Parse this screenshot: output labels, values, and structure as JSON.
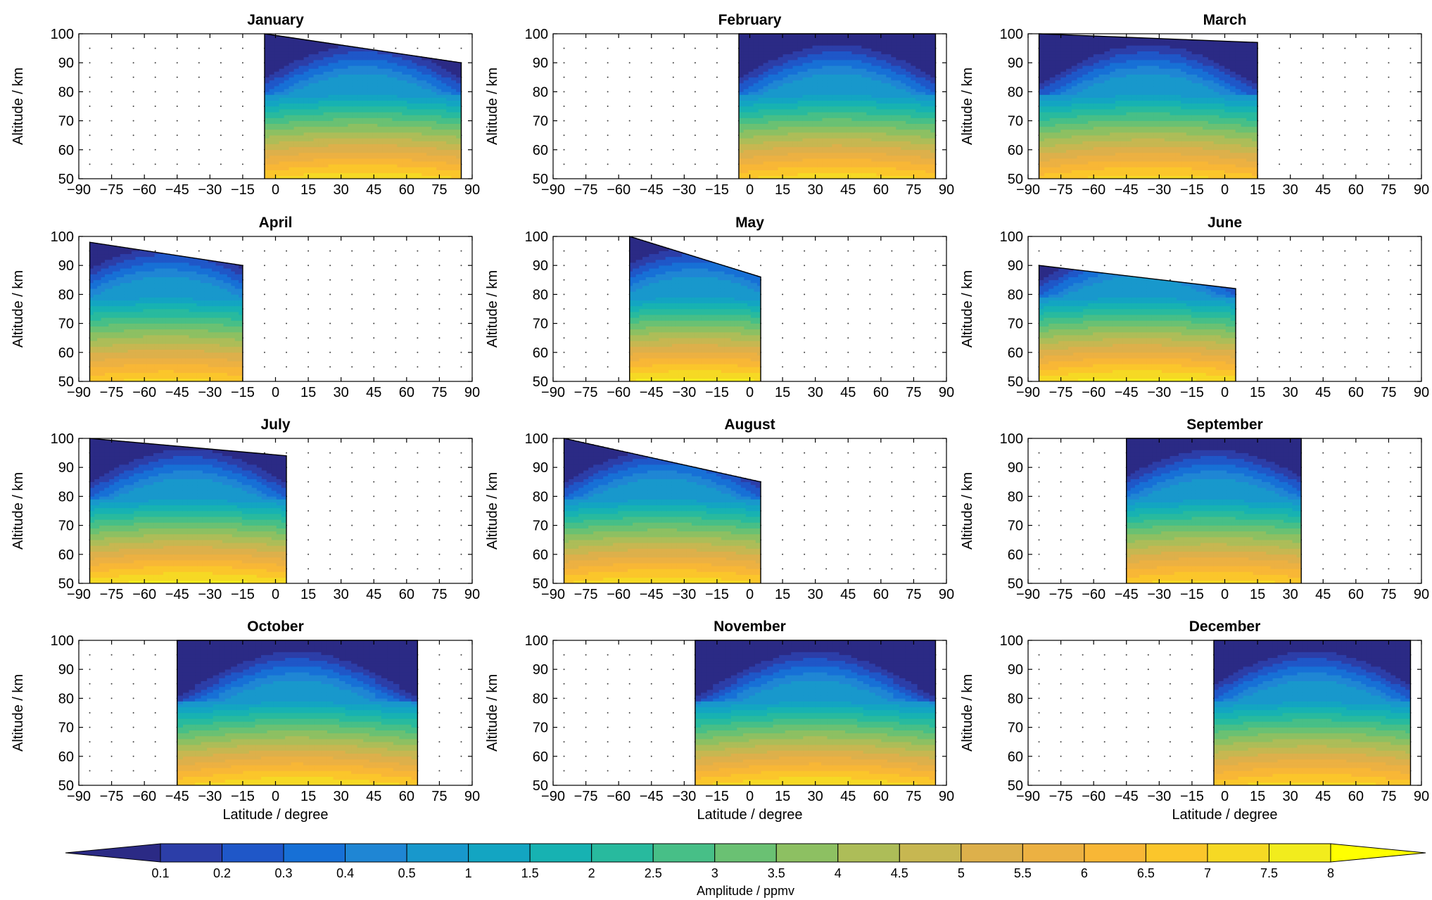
{
  "chart_data": {
    "type": "heatmap",
    "panels": [
      {
        "title": "January",
        "lat_range": [
          -5,
          85
        ],
        "low_peak": 7.3,
        "top_alt": [
          100,
          90
        ],
        "show_xlabel": false
      },
      {
        "title": "February",
        "lat_range": [
          -5,
          85
        ],
        "low_peak": 7.2,
        "top_alt": [
          100,
          100
        ],
        "show_xlabel": false
      },
      {
        "title": "March",
        "lat_range": [
          -85,
          15
        ],
        "low_peak": 7.1,
        "top_alt": [
          100,
          97
        ],
        "show_xlabel": false
      },
      {
        "title": "April",
        "lat_range": [
          -85,
          -15
        ],
        "low_peak": 7.0,
        "top_alt": [
          98,
          90
        ],
        "show_xlabel": false
      },
      {
        "title": "May",
        "lat_range": [
          -55,
          5
        ],
        "low_peak": 7.6,
        "top_alt": [
          100,
          86
        ],
        "show_xlabel": false
      },
      {
        "title": "June",
        "lat_range": [
          -85,
          5
        ],
        "low_peak": 7.6,
        "top_alt": [
          90,
          82
        ],
        "show_xlabel": false
      },
      {
        "title": "July",
        "lat_range": [
          -85,
          5
        ],
        "low_peak": 7.6,
        "top_alt": [
          100,
          94
        ],
        "show_xlabel": false
      },
      {
        "title": "August",
        "lat_range": [
          -85,
          5
        ],
        "low_peak": 7.3,
        "top_alt": [
          100,
          85
        ],
        "show_xlabel": false
      },
      {
        "title": "September",
        "lat_range": [
          -45,
          35
        ],
        "low_peak": 7.1,
        "top_alt": [
          100,
          100
        ],
        "show_xlabel": false
      },
      {
        "title": "October",
        "lat_range": [
          -45,
          65
        ],
        "low_peak": 7.4,
        "top_alt": [
          100,
          100
        ],
        "show_xlabel": true
      },
      {
        "title": "November",
        "lat_range": [
          -25,
          85
        ],
        "low_peak": 7.4,
        "top_alt": [
          100,
          100
        ],
        "show_xlabel": true
      },
      {
        "title": "December",
        "lat_range": [
          -5,
          85
        ],
        "low_peak": 7.1,
        "top_alt": [
          100,
          100
        ],
        "show_xlabel": true
      }
    ],
    "xlabel": "Latitude / degree",
    "ylabel": "Altitude / km",
    "xlim": [
      -90,
      90
    ],
    "ylim": [
      50,
      100
    ],
    "xticks": [
      -90,
      -75,
      -60,
      -45,
      -30,
      -15,
      0,
      15,
      30,
      45,
      60,
      75,
      90
    ],
    "yticks": [
      50,
      60,
      70,
      80,
      90,
      100
    ],
    "colorbar": {
      "label": "Amplitude / ppmv",
      "levels": [
        0.1,
        0.2,
        0.3,
        0.4,
        0.5,
        1,
        1.5,
        2,
        2.5,
        3,
        3.5,
        4,
        4.5,
        5,
        5.5,
        6,
        6.5,
        7,
        7.5,
        8
      ],
      "colors": [
        "#2b2a85",
        "#2c3ea8",
        "#1f57c8",
        "#1770d6",
        "#1f86d4",
        "#1898cc",
        "#13a5c2",
        "#17b2b2",
        "#28ba9e",
        "#47bf87",
        "#6ac173",
        "#8dc062",
        "#adbd58",
        "#c7b751",
        "#ddb04b",
        "#ecb142",
        "#f8b736",
        "#fbc62b",
        "#f6d924",
        "#f2ec1d",
        "#ffff00"
      ]
    }
  }
}
